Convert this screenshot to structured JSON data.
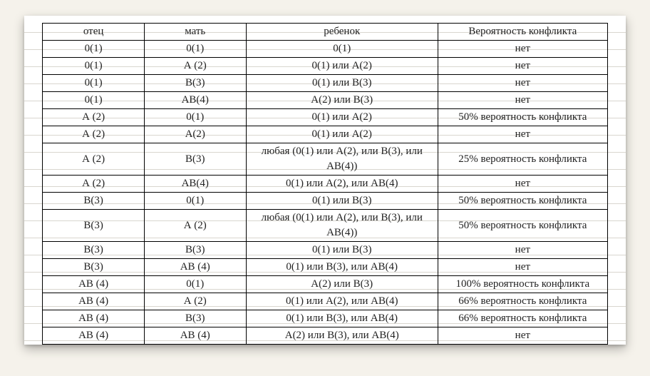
{
  "table": {
    "columns": [
      "отец",
      "мать",
      "ребенок",
      "Вероятность конфликта"
    ],
    "rows": [
      [
        "0(1)",
        "0(1)",
        "0(1)",
        "нет"
      ],
      [
        "0(1)",
        "А (2)",
        "0(1) или А(2)",
        "нет"
      ],
      [
        "0(1)",
        "В(3)",
        "0(1) или В(3)",
        "нет"
      ],
      [
        "0(1)",
        "АВ(4)",
        "А(2) или В(3)",
        "нет"
      ],
      [
        "А (2)",
        "0(1)",
        "0(1) или А(2)",
        "50% вероятность конфликта"
      ],
      [
        "А (2)",
        "А(2)",
        "0(1) или А(2)",
        "нет"
      ],
      [
        "А (2)",
        "В(3)",
        "любая (0(1) или А(2), или В(3), или АВ(4))",
        "25% вероятность конфликта"
      ],
      [
        "А (2)",
        "АВ(4)",
        "0(1) или А(2), или АВ(4)",
        "нет"
      ],
      [
        "В(3)",
        "0(1)",
        "0(1) или В(3)",
        "50% вероятность конфликта"
      ],
      [
        "В(3)",
        "А (2)",
        "любая (0(1) или А(2), или В(3), или АВ(4))",
        "50% вероятность конфликта"
      ],
      [
        "В(3)",
        "В(3)",
        "0(1) или В(3)",
        "нет"
      ],
      [
        "В(3)",
        "АВ (4)",
        "0(1) или В(3), или АВ(4)",
        "нет"
      ],
      [
        "АВ (4)",
        "0(1)",
        "А(2) или В(3)",
        "100% вероятность конфликта"
      ],
      [
        "АВ (4)",
        "А (2)",
        "0(1) или А(2), или АВ(4)",
        "66% вероятность конфликта"
      ],
      [
        "АВ (4)",
        "В(3)",
        "0(1) или В(3), или АВ(4)",
        "66% вероятность конфликта"
      ],
      [
        "АВ (4)",
        "АВ (4)",
        "А(2) или В(3), или АВ(4)",
        "нет"
      ]
    ]
  },
  "style": {
    "background_page": "#f5f2eb",
    "sheet_background": "#ffffff",
    "rule_line_color": "#d9d6cf",
    "border_color": "#000000",
    "font_family": "Times New Roman",
    "font_size_pt": 11
  }
}
